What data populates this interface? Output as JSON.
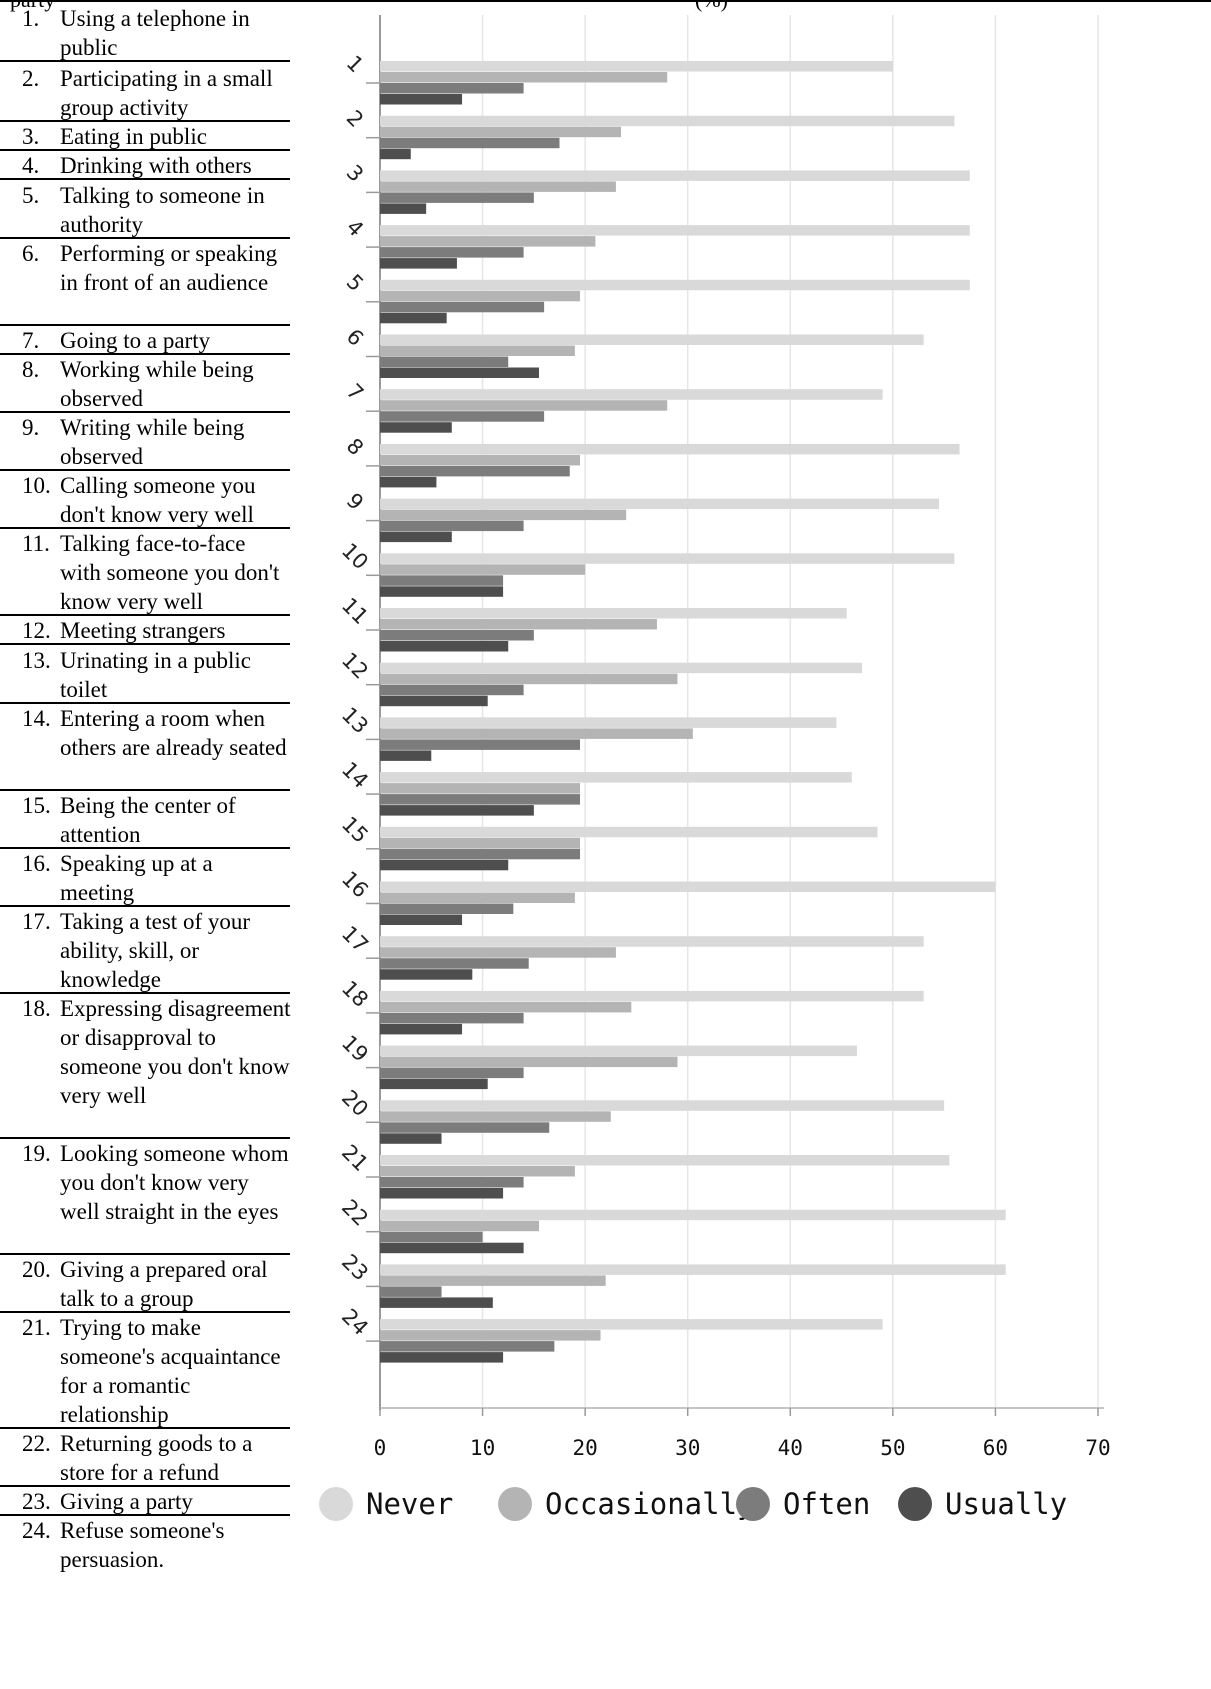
{
  "header": {
    "left_fragment": "party",
    "right_fragment": "(%)"
  },
  "items": [
    {
      "num": "1.",
      "text": "Using a telephone in public"
    },
    {
      "num": "2.",
      "text": "Participating in a small group activity"
    },
    {
      "num": "3.",
      "text": "Eating in public"
    },
    {
      "num": "4.",
      "text": "Drinking with others"
    },
    {
      "num": "5.",
      "text": "Talking to someone in authority"
    },
    {
      "num": "6.",
      "text": "Performing or speaking in front of an audience"
    },
    {
      "num": "7.",
      "text": "Going to a party"
    },
    {
      "num": "8.",
      "text": "Working while being observed"
    },
    {
      "num": "9.",
      "text": "Writing while being observed"
    },
    {
      "num": "10.",
      "text": "Calling someone you don't know very well"
    },
    {
      "num": "11.",
      "text": "Talking face-to-face with someone you don't know very well"
    },
    {
      "num": "12.",
      "text": "Meeting strangers"
    },
    {
      "num": "13.",
      "text": "Urinating in a public toilet"
    },
    {
      "num": "14.",
      "text": "Entering a room when others are already seated"
    },
    {
      "num": "15.",
      "text": "Being the center of attention"
    },
    {
      "num": "16.",
      "text": "Speaking up at a meeting"
    },
    {
      "num": "17.",
      "text": "Taking a test of your ability, skill, or knowledge"
    },
    {
      "num": "18.",
      "text": "Expressing disagreement or disapproval to someone you don't know very well"
    },
    {
      "num": "19.",
      "text": "Looking someone whom you don't know very well straight in the eyes"
    },
    {
      "num": "20.",
      "text": "Giving a prepared oral talk to a group"
    },
    {
      "num": "21.",
      "text": "Trying to make someone's acquaintance for a romantic relationship"
    },
    {
      "num": "22.",
      "text": "Returning goods to a store for a refund"
    },
    {
      "num": "23.",
      "text": "Giving a party"
    },
    {
      "num": "24.",
      "text": "Refuse someone's persuasion."
    }
  ],
  "chart_data": {
    "type": "bar",
    "orientation": "horizontal",
    "categories": [
      "1",
      "2",
      "3",
      "4",
      "5",
      "6",
      "7",
      "8",
      "9",
      "10",
      "11",
      "12",
      "13",
      "14",
      "15",
      "16",
      "17",
      "18",
      "19",
      "20",
      "21",
      "22",
      "23",
      "24"
    ],
    "series": [
      {
        "name": "Never",
        "color": "#d9d9d9",
        "values": [
          50,
          56,
          57.5,
          57.5,
          57.5,
          53,
          49,
          56.5,
          54.5,
          56,
          45.5,
          47,
          44.5,
          46,
          48.5,
          60,
          53,
          53,
          46.5,
          55,
          55.5,
          61,
          61,
          49
        ]
      },
      {
        "name": "Occasionally",
        "color": "#b4b4b4",
        "values": [
          28,
          23.5,
          23,
          21,
          19.5,
          19,
          28,
          19.5,
          24,
          20,
          27,
          29,
          30.5,
          19.5,
          19.5,
          19,
          23,
          24.5,
          29,
          22.5,
          19,
          15.5,
          22,
          21.5
        ]
      },
      {
        "name": "Often",
        "color": "#7c7c7c",
        "values": [
          14,
          17.5,
          15,
          14,
          16,
          12.5,
          16,
          18.5,
          14,
          12,
          15,
          14,
          19.5,
          19.5,
          19.5,
          13,
          14.5,
          14,
          14,
          16.5,
          14,
          10,
          6,
          17
        ]
      },
      {
        "name": "Usually",
        "color": "#4e4e4e",
        "values": [
          8,
          3,
          4.5,
          7.5,
          6.5,
          15.5,
          7,
          5.5,
          7,
          12,
          12.5,
          10.5,
          5,
          15,
          12.5,
          8,
          9,
          8,
          10.5,
          6,
          12,
          14,
          11,
          12
        ]
      }
    ],
    "xlim": [
      0,
      70
    ],
    "xticks": [
      0,
      10,
      20,
      30,
      40,
      50,
      60,
      70
    ],
    "grid": true,
    "legend_position": "bottom"
  }
}
